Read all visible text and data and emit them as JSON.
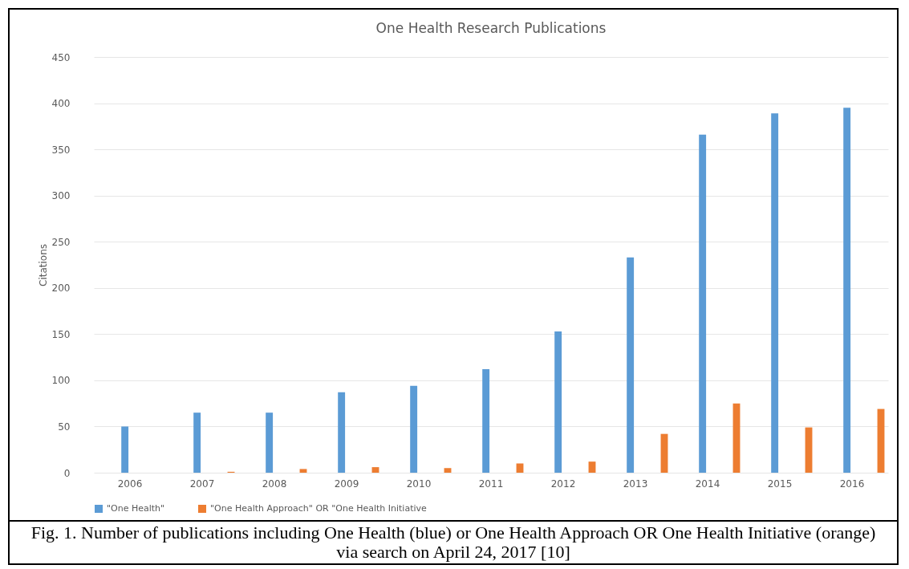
{
  "chart_data": {
    "type": "bar",
    "title": "One Health Research Publications",
    "ylabel": "Citations",
    "categories": [
      "2006",
      "2007",
      "2008",
      "2009",
      "2010",
      "2011",
      "2012",
      "2013",
      "2014",
      "2015",
      "2016"
    ],
    "series": [
      {
        "name": "\"One Health\"",
        "color": "#5b9bd5",
        "values": [
          50,
          65,
          65,
          87,
          94,
          112,
          153,
          233,
          366,
          389,
          395
        ]
      },
      {
        "name": "\"One Health Approach\" OR \"One Health Initiative",
        "color": "#ed7d31",
        "values": [
          0,
          1,
          4,
          6,
          5,
          10,
          12,
          42,
          75,
          49,
          69
        ]
      }
    ],
    "ylim": [
      0,
      450
    ],
    "yticks": [
      0,
      50,
      100,
      150,
      200,
      250,
      300,
      350,
      400,
      450
    ],
    "grid": "y",
    "legend": "bottom",
    "annotations": [
      "Fig. 1. Number of publications including One Health (blue) or One Health Approach OR One Health Initiative (orange) via search on April 24, 2017 [10]"
    ]
  }
}
